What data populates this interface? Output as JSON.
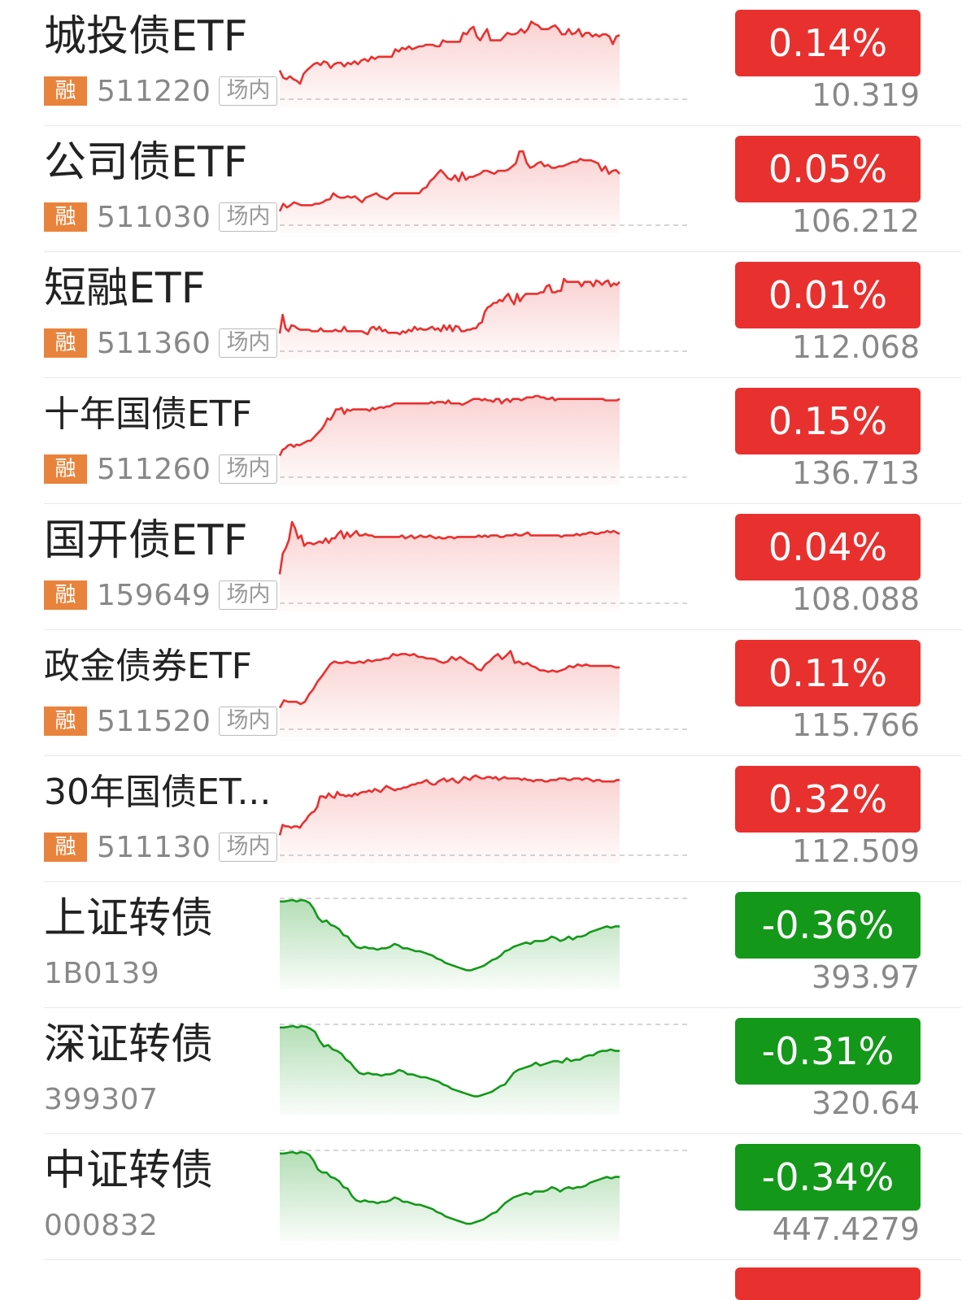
{
  "theme": {
    "up_color": "#e8312f",
    "down_color": "#13981a",
    "tag_color": "#e9833c"
  },
  "items": [
    {
      "name": "城投债ETF",
      "code": "511220",
      "rong": "融",
      "tag": "场内",
      "change": "0.14%",
      "price": "10.319",
      "direction": "up",
      "spark": [
        70,
        80,
        82,
        78,
        82,
        84,
        88,
        75,
        70,
        66,
        62,
        60,
        63,
        58,
        60,
        67,
        62,
        60,
        60,
        65,
        60,
        62,
        58,
        62,
        57,
        55,
        58,
        52,
        55,
        52,
        52,
        52,
        52,
        52,
        42,
        45,
        40,
        42,
        38,
        42,
        40,
        38,
        38,
        36,
        36,
        36,
        38,
        38,
        30,
        32,
        32,
        32,
        32,
        32,
        20,
        22,
        15,
        12,
        25,
        30,
        22,
        15,
        30,
        30,
        30,
        30,
        25,
        20,
        22,
        22,
        20,
        15,
        20,
        15,
        5,
        8,
        10,
        15,
        15,
        15,
        12,
        10,
        15,
        22,
        22,
        15,
        22,
        20,
        15,
        25,
        20,
        20,
        25,
        22,
        25,
        22,
        22,
        25,
        35,
        25,
        23
      ]
    },
    {
      "name": "公司债ETF",
      "code": "511030",
      "rong": "融",
      "tag": "场内",
      "change": "0.05%",
      "price": "106.212",
      "direction": "up",
      "spark": [
        90,
        80,
        85,
        82,
        78,
        80,
        82,
        82,
        82,
        82,
        80,
        80,
        78,
        75,
        74,
        66,
        70,
        72,
        72,
        70,
        72,
        70,
        74,
        78,
        72,
        70,
        68,
        66,
        70,
        72,
        74,
        70,
        66,
        66,
        66,
        66,
        66,
        66,
        66,
        66,
        60,
        58,
        50,
        46,
        40,
        35,
        40,
        46,
        48,
        42,
        50,
        38,
        48,
        44,
        44,
        42,
        40,
        36,
        36,
        38,
        40,
        36,
        36,
        36,
        34,
        30,
        26,
        10,
        10,
        25,
        32,
        30,
        26,
        24,
        30,
        28,
        32,
        32,
        30,
        30,
        28,
        26,
        24,
        24,
        20,
        22,
        22,
        22,
        24,
        26,
        36,
        30,
        40,
        36,
        35,
        40
      ]
    },
    {
      "name": "短融ETF",
      "code": "511360",
      "rong": "融",
      "tag": "场内",
      "change": "0.01%",
      "price": "112.068",
      "direction": "up",
      "spark": [
        85,
        60,
        78,
        82,
        74,
        75,
        78,
        80,
        80,
        80,
        80,
        82,
        82,
        82,
        78,
        82,
        82,
        82,
        82,
        80,
        82,
        82,
        76,
        82,
        82,
        82,
        82,
        82,
        82,
        84,
        86,
        78,
        76,
        80,
        76,
        82,
        80,
        84,
        84,
        84,
        84,
        86,
        82,
        84,
        80,
        82,
        76,
        80,
        78,
        80,
        80,
        78,
        76,
        80,
        78,
        82,
        74,
        80,
        74,
        82,
        75,
        76,
        82,
        82,
        80,
        80,
        78,
        78,
        72,
        70,
        56,
        50,
        48,
        44,
        44,
        40,
        42,
        36,
        32,
        40,
        46,
        32,
        42,
        36,
        32,
        32,
        32,
        32,
        32,
        30,
        30,
        22,
        20,
        30,
        30,
        28,
        28,
        12,
        16,
        16,
        16,
        16,
        16,
        22,
        16,
        16,
        16,
        22,
        14,
        16,
        20,
        16,
        14,
        22,
        18,
        20,
        16
      ]
    },
    {
      "name": "十年国债ETF",
      "code": "511260",
      "rong": "融",
      "tag": "场内",
      "change": "0.15%",
      "price": "136.713",
      "direction": "up",
      "spark": [
        80,
        72,
        70,
        66,
        65,
        68,
        65,
        66,
        64,
        62,
        60,
        60,
        56,
        52,
        48,
        44,
        38,
        30,
        32,
        26,
        18,
        18,
        16,
        24,
        18,
        20,
        18,
        18,
        18,
        18,
        18,
        18,
        20,
        16,
        18,
        16,
        15,
        16,
        14,
        14,
        12,
        10,
        10,
        10,
        10,
        10,
        10,
        10,
        10,
        10,
        10,
        10,
        10,
        10,
        8,
        10,
        8,
        8,
        8,
        10,
        6,
        10,
        10,
        10,
        10,
        12,
        10,
        8,
        6,
        4,
        4,
        4,
        6,
        4,
        6,
        6,
        8,
        4,
        4,
        10,
        6,
        4,
        8,
        4,
        4,
        4,
        6,
        4,
        2,
        2,
        2,
        0,
        0,
        2,
        2,
        4,
        4,
        2,
        6,
        4,
        4,
        4,
        4,
        4,
        4,
        4,
        4,
        4,
        4,
        4,
        4,
        4,
        4,
        4,
        4,
        4,
        6,
        6,
        6,
        6,
        6,
        4
      ]
    },
    {
      "name": "国开债ETF",
      "code": "159649",
      "rong": "融",
      "tag": "场内",
      "change": "0.04%",
      "price": "108.088",
      "direction": "up",
      "spark": [
        70,
        42,
        35,
        24,
        0,
        8,
        22,
        18,
        32,
        28,
        28,
        30,
        28,
        26,
        28,
        22,
        28,
        22,
        22,
        16,
        12,
        22,
        14,
        20,
        16,
        12,
        18,
        18,
        16,
        18,
        18,
        20,
        20,
        20,
        20,
        20,
        20,
        20,
        20,
        20,
        18,
        22,
        20,
        18,
        22,
        20,
        18,
        20,
        20,
        18,
        20,
        22,
        20,
        22,
        22,
        20,
        20,
        22,
        20,
        20,
        20,
        20,
        20,
        20,
        20,
        18,
        20,
        18,
        20,
        18,
        18,
        18,
        20,
        20,
        18,
        18,
        18,
        16,
        18,
        18,
        16,
        14,
        18,
        18,
        18,
        18,
        18,
        18,
        18,
        18,
        18,
        18,
        20,
        18,
        18,
        18,
        18,
        16,
        18,
        16,
        16,
        14,
        14,
        16,
        16,
        14,
        14,
        12,
        14,
        12,
        14,
        16
      ]
    },
    {
      "name": "政金债券ETF",
      "code": "511520",
      "rong": "融",
      "tag": "场内",
      "change": "0.11%",
      "price": "115.766",
      "direction": "up",
      "spark": [
        80,
        70,
        72,
        72,
        72,
        75,
        72,
        62,
        55,
        45,
        38,
        30,
        22,
        18,
        20,
        20,
        18,
        20,
        20,
        18,
        20,
        16,
        18,
        16,
        16,
        14,
        14,
        8,
        10,
        8,
        8,
        10,
        8,
        12,
        12,
        14,
        14,
        15,
        18,
        20,
        18,
        12,
        16,
        12,
        16,
        20,
        22,
        28,
        30,
        22,
        18,
        12,
        8,
        15,
        10,
        4,
        20,
        18,
        22,
        20,
        24,
        26,
        30,
        30,
        32,
        30,
        32,
        30,
        28,
        24,
        26,
        22,
        24,
        22,
        24,
        24,
        24,
        24,
        24,
        24,
        26,
        26
      ]
    },
    {
      "name": "30年国债ET...",
      "code": "511130",
      "rong": "融",
      "tag": "场内",
      "change": "0.32%",
      "price": "112.509",
      "direction": "up",
      "spark": [
        82,
        68,
        70,
        70,
        72,
        70,
        70,
        72,
        66,
        62,
        56,
        52,
        50,
        44,
        30,
        30,
        32,
        26,
        30,
        32,
        24,
        28,
        28,
        30,
        28,
        30,
        26,
        28,
        25,
        24,
        24,
        22,
        24,
        20,
        22,
        24,
        20,
        16,
        18,
        20,
        22,
        20,
        20,
        18,
        18,
        16,
        14,
        14,
        12,
        12,
        10,
        8,
        12,
        14,
        14,
        10,
        8,
        6,
        10,
        8,
        6,
        10,
        12,
        8,
        4,
        6,
        8,
        4,
        2,
        4,
        6,
        6,
        4,
        4,
        6,
        4,
        8,
        6,
        4,
        6,
        6,
        6,
        6,
        6,
        8,
        6,
        8,
        8,
        10,
        8,
        8,
        8,
        10,
        10,
        8,
        8,
        8,
        6,
        6,
        6,
        8,
        8,
        6,
        6,
        6,
        8,
        6,
        6,
        8,
        10,
        8,
        8,
        10,
        10,
        10,
        10,
        10,
        8,
        8
      ]
    },
    {
      "name": "上证转债",
      "code": "1B0139",
      "change": "-0.36%",
      "price": "393.97",
      "direction": "down",
      "spark": [
        2,
        2,
        1,
        0,
        2,
        0,
        1,
        4,
        12,
        24,
        30,
        28,
        34,
        36,
        40,
        48,
        50,
        58,
        64,
        66,
        64,
        66,
        66,
        68,
        66,
        66,
        64,
        60,
        62,
        66,
        66,
        68,
        70,
        70,
        72,
        74,
        76,
        80,
        82,
        86,
        88,
        90,
        92,
        94,
        96,
        96,
        94,
        92,
        90,
        86,
        82,
        80,
        76,
        70,
        68,
        64,
        62,
        60,
        58,
        60,
        56,
        56,
        56,
        54,
        50,
        52,
        56,
        54,
        50,
        54,
        50,
        50,
        48,
        44,
        42,
        40,
        38,
        36,
        38,
        36,
        36
      ]
    },
    {
      "name": "深证转债",
      "code": "399307",
      "change": "-0.31%",
      "price": "320.64",
      "direction": "down",
      "spark": [
        2,
        2,
        1,
        0,
        2,
        0,
        1,
        4,
        8,
        20,
        28,
        26,
        32,
        34,
        38,
        46,
        50,
        58,
        64,
        66,
        64,
        66,
        66,
        68,
        66,
        66,
        64,
        60,
        62,
        66,
        66,
        68,
        70,
        70,
        72,
        74,
        76,
        80,
        82,
        86,
        88,
        90,
        92,
        94,
        96,
        96,
        94,
        92,
        90,
        86,
        82,
        80,
        72,
        64,
        60,
        58,
        56,
        54,
        50,
        54,
        52,
        50,
        48,
        48,
        50,
        44,
        48,
        46,
        46,
        42,
        40,
        40,
        36,
        34,
        34,
        32,
        34,
        34
      ]
    },
    {
      "name": "中证转债",
      "code": "000832",
      "change": "-0.34%",
      "price": "447.4279",
      "direction": "down",
      "spark": [
        2,
        2,
        1,
        0,
        2,
        0,
        1,
        4,
        12,
        24,
        28,
        28,
        34,
        36,
        40,
        48,
        50,
        60,
        66,
        68,
        66,
        68,
        68,
        70,
        68,
        68,
        66,
        62,
        64,
        68,
        68,
        70,
        72,
        72,
        74,
        76,
        78,
        82,
        84,
        88,
        90,
        92,
        94,
        96,
        98,
        98,
        96,
        94,
        92,
        88,
        84,
        82,
        76,
        70,
        66,
        62,
        60,
        58,
        56,
        58,
        54,
        54,
        54,
        52,
        48,
        50,
        54,
        50,
        48,
        50,
        48,
        48,
        46,
        42,
        40,
        38,
        36,
        34,
        36,
        34,
        34
      ]
    }
  ]
}
